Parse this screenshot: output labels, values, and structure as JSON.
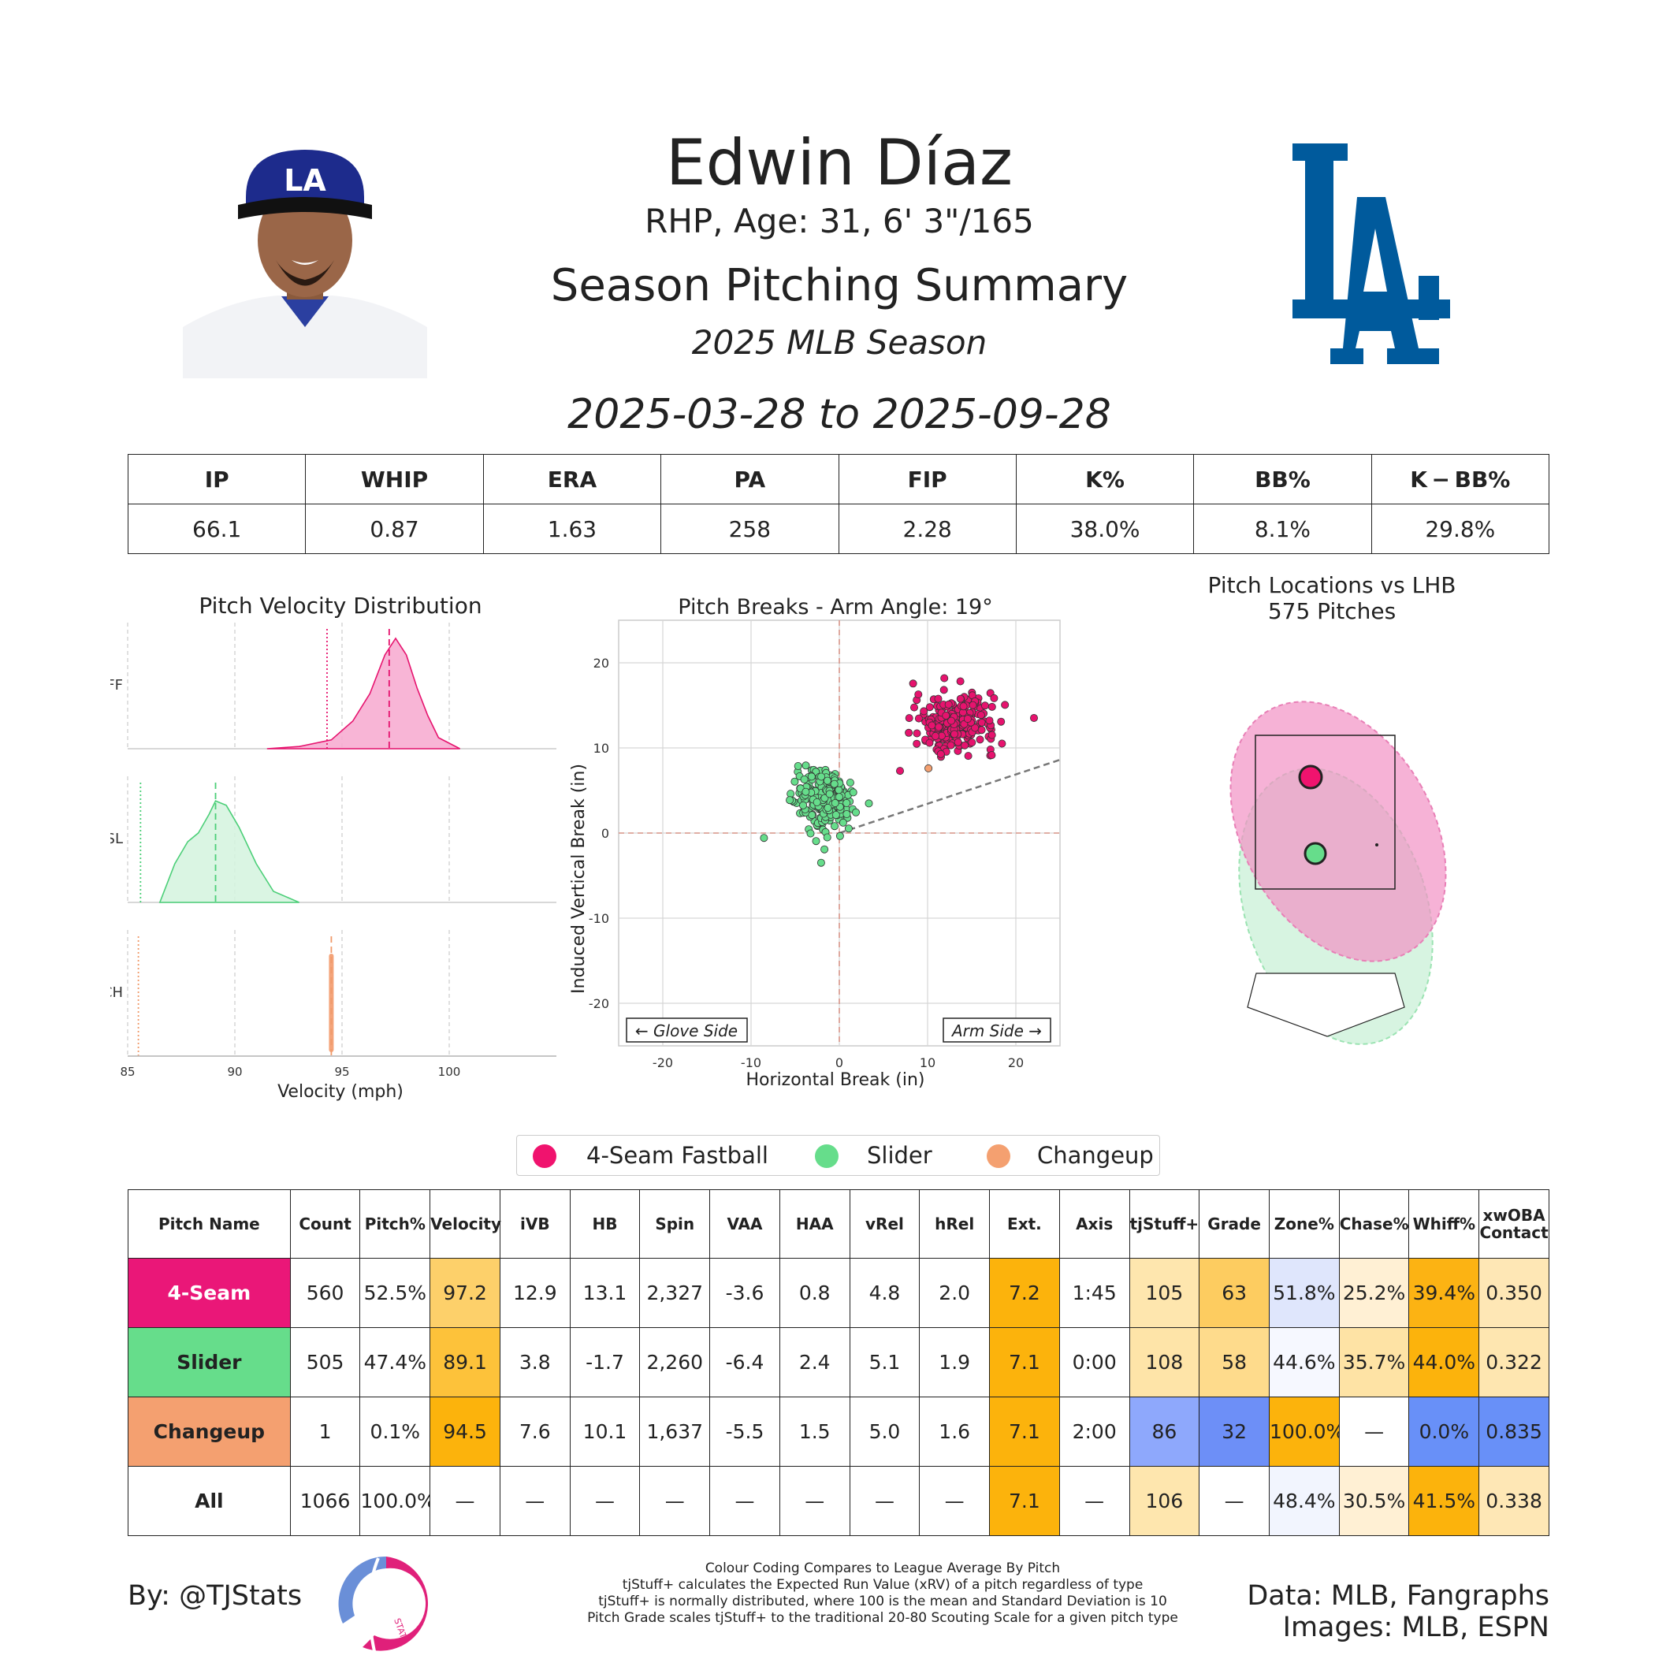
{
  "header": {
    "player_name": "Edwin Díaz",
    "bio": "RHP, Age: 31, 6' 3\"/165",
    "report_title": "Season Pitching Summary",
    "season": "2025 MLB Season",
    "date_range": "2025-03-28 to 2025-09-28",
    "team_logo_text": "LA",
    "cap_logo_text": "LA"
  },
  "season_stats": {
    "headers": [
      "IP",
      "WHIP",
      "ERA",
      "PA",
      "FIP",
      "K%",
      "BB%",
      "K − BB%"
    ],
    "values": [
      "66.1",
      "0.87",
      "1.63",
      "258",
      "2.28",
      "38.0%",
      "8.1%",
      "29.8%"
    ]
  },
  "chart_data": [
    {
      "type": "area",
      "title": "Pitch Velocity Distribution",
      "xlabel": "Velocity (mph)",
      "xlim": [
        85,
        105
      ],
      "xticks": [
        85,
        90,
        95,
        100
      ],
      "series": [
        {
          "name": "FF",
          "color": "#e6136e",
          "fill": "#f7a8cf",
          "mean_line": 97.2,
          "league_line": 94.3,
          "x": [
            91.5,
            93,
            94.5,
            95.5,
            96.3,
            97,
            97.5,
            98,
            98.5,
            99,
            99.5,
            100.5
          ],
          "y": [
            0,
            0.02,
            0.08,
            0.25,
            0.5,
            0.85,
            1.0,
            0.85,
            0.55,
            0.3,
            0.1,
            0
          ]
        },
        {
          "name": "SL",
          "color": "#4ccf78",
          "fill": "#d4f3de",
          "mean_line": 89.1,
          "league_line": 85.6,
          "x": [
            86.5,
            87.2,
            87.8,
            88.3,
            88.8,
            89.1,
            89.6,
            90.2,
            91,
            91.8,
            93
          ],
          "y": [
            0,
            0.35,
            0.55,
            0.63,
            0.8,
            0.92,
            0.88,
            0.68,
            0.35,
            0.1,
            0
          ]
        },
        {
          "name": "CH",
          "color": "#f09a6a",
          "fill": "#f4a47a",
          "mean_line": 94.5,
          "league_line": 85.5,
          "x": [
            94.5
          ],
          "y": [
            1
          ]
        }
      ]
    },
    {
      "type": "scatter",
      "title": "Pitch Breaks - Arm Angle: 19°",
      "xlabel": "Horizontal Break (in)",
      "ylabel": "Induced Vertical Break (in)",
      "xlim": [
        -25,
        25
      ],
      "ylim": [
        -25,
        25
      ],
      "xticks": [
        -20,
        -10,
        0,
        10,
        20
      ],
      "yticks": [
        -20,
        -10,
        0,
        10,
        20
      ],
      "arm_angle_deg": 19,
      "annotations": [
        "← Glove Side",
        "Arm Side →"
      ],
      "series": [
        {
          "name": "4-Seam Fastball",
          "color": "#e6136e",
          "center": [
            13.1,
            12.9
          ],
          "spread": [
            2.3,
            1.6
          ],
          "count": 560
        },
        {
          "name": "Slider",
          "color": "#66dd8b",
          "center": [
            -1.7,
            3.8
          ],
          "spread": [
            1.6,
            1.8
          ],
          "count": 505
        },
        {
          "name": "Changeup",
          "color": "#f4a070",
          "center": [
            10.1,
            7.6
          ],
          "spread": [
            0,
            0
          ],
          "count": 1
        }
      ]
    },
    {
      "type": "scatter",
      "title": "Pitch Locations vs LHB",
      "subtitle": "575 Pitches",
      "series": [
        {
          "name": "4-Seam Fastball",
          "color": "#e6136e",
          "mean": [
            -0.3,
            2.8
          ]
        },
        {
          "name": "Slider",
          "color": "#66dd8b",
          "mean": [
            -0.25,
            1.7
          ]
        }
      ]
    }
  ],
  "legend": [
    {
      "label": "4-Seam Fastball",
      "color": "#f0136e"
    },
    {
      "label": "Slider",
      "color": "#66dd8b"
    },
    {
      "label": "Changeup",
      "color": "#f4a070"
    }
  ],
  "pitch_table": {
    "headers": [
      "Pitch Name",
      "Count",
      "Pitch%",
      "Velocity",
      "iVB",
      "HB",
      "Spin",
      "VAA",
      "HAA",
      "vRel",
      "hRel",
      "Ext.",
      "Axis",
      "tjStuff+",
      "Grade",
      "Zone%",
      "Chase%",
      "Whiff%",
      "xwOBA Contact"
    ],
    "rows": [
      {
        "cells": [
          "4-Seam",
          "560",
          "52.5%",
          "97.2",
          "12.9",
          "13.1",
          "2,327",
          "-3.6",
          "0.8",
          "4.8",
          "2.0",
          "7.2",
          "1:45",
          "105",
          "63",
          "51.8%",
          "25.2%",
          "39.4%",
          "0.350"
        ],
        "colors": [
          "#ea1778",
          "#ffffff",
          "#ffffff",
          "#fdd06a",
          "#ffffff",
          "#ffffff",
          "#ffffff",
          "#ffffff",
          "#ffffff",
          "#ffffff",
          "#ffffff",
          "#fcb30c",
          "#ffffff",
          "#fee6ae",
          "#fdcc60",
          "#dfe6fc",
          "#fff0d4",
          "#fcb313",
          "#fee7b5"
        ]
      },
      {
        "cells": [
          "Slider",
          "505",
          "47.4%",
          "89.1",
          "3.8",
          "-1.7",
          "2,260",
          "-6.4",
          "2.4",
          "5.1",
          "1.9",
          "7.1",
          "0:00",
          "108",
          "58",
          "44.6%",
          "35.7%",
          "44.0%",
          "0.322"
        ],
        "colors": [
          "#66dd8b",
          "#ffffff",
          "#ffffff",
          "#fdc23a",
          "#ffffff",
          "#ffffff",
          "#ffffff",
          "#ffffff",
          "#ffffff",
          "#ffffff",
          "#ffffff",
          "#fcb30c",
          "#ffffff",
          "#fee4a8",
          "#fedb8c",
          "#f6f8ff",
          "#fee3a5",
          "#fcb30c",
          "#fee6b0"
        ]
      },
      {
        "cells": [
          "Changeup",
          "1",
          "0.1%",
          "94.5",
          "7.6",
          "10.1",
          "1,637",
          "-5.5",
          "1.5",
          "5.0",
          "1.6",
          "7.1",
          "2:00",
          "86",
          "32",
          "100.0%",
          "—",
          "0.0%",
          "0.835"
        ],
        "colors": [
          "#f4a070",
          "#ffffff",
          "#ffffff",
          "#fcb30c",
          "#ffffff",
          "#ffffff",
          "#ffffff",
          "#ffffff",
          "#ffffff",
          "#ffffff",
          "#ffffff",
          "#fcb30c",
          "#ffffff",
          "#8ea8fc",
          "#6d8ff7",
          "#fcb30c",
          "#ffffff",
          "#6890f8",
          "#6890f8"
        ]
      },
      {
        "cells": [
          "All",
          "1066",
          "100.0%",
          "—",
          "—",
          "—",
          "—",
          "—",
          "—",
          "—",
          "—",
          "7.1",
          "—",
          "106",
          "—",
          "48.4%",
          "30.5%",
          "41.5%",
          "0.338"
        ],
        "colors": [
          "#ffffff",
          "#ffffff",
          "#ffffff",
          "#ffffff",
          "#ffffff",
          "#ffffff",
          "#ffffff",
          "#ffffff",
          "#ffffff",
          "#ffffff",
          "#ffffff",
          "#fcb30c",
          "#ffffff",
          "#fee6ae",
          "#ffffff",
          "#f2f5fe",
          "#fff0d4",
          "#fcb30c",
          "#fee7b5"
        ]
      }
    ]
  },
  "footer": {
    "credit": "By: @TJStats",
    "notes": [
      "Colour Coding Compares to League Average By Pitch",
      "tjStuff+ calculates the Expected Run Value (xRV) of a pitch regardless of type",
      "tjStuff+ is normally distributed, where 100 is the mean and Standard Deviation is 10",
      "Pitch Grade scales tjStuff+ to the traditional 20-80 Scouting Scale for a given pitch type"
    ],
    "data_source": "Data: MLB, Fangraphs",
    "image_source": "Images: MLB, ESPN",
    "logo_text": "STATS"
  }
}
